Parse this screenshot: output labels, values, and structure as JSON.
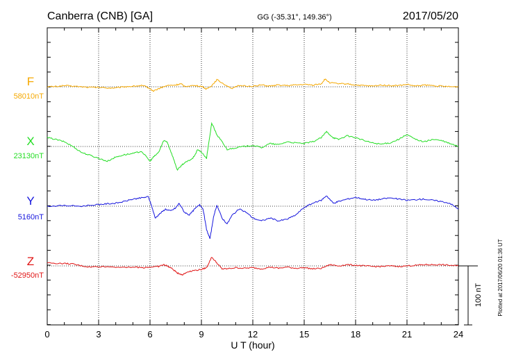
{
  "header": {
    "station": "Canberra (CNB)  [GA]",
    "coords": "GG (-35.31°, 149.36°)",
    "date": "2017/05/20"
  },
  "footer": {
    "plotted": "Plotted at 2017/06/20 01:36 UT",
    "scale_label": "100 nT"
  },
  "chart_data": {
    "type": "line",
    "xlabel": "U T (hour)",
    "xlim": [
      0,
      24
    ],
    "xticks": [
      "0",
      "3",
      "6",
      "9",
      "12",
      "15",
      "18",
      "21",
      "24"
    ],
    "scale_nT": 100,
    "series": [
      {
        "name": "F",
        "baseline_label": "58010nT",
        "color": "#f5a800",
        "points": [
          [
            0,
            0
          ],
          [
            0.5,
            0.5
          ],
          [
            1,
            2
          ],
          [
            1.5,
            1
          ],
          [
            2,
            0
          ],
          [
            2.5,
            -1
          ],
          [
            3,
            -1
          ],
          [
            3.5,
            -2
          ],
          [
            4,
            -2
          ],
          [
            4.5,
            0
          ],
          [
            5,
            1
          ],
          [
            5.5,
            2
          ],
          [
            5.8,
            0
          ],
          [
            6.2,
            -7
          ],
          [
            6.6,
            -2
          ],
          [
            7,
            2
          ],
          [
            7.5,
            3
          ],
          [
            7.8,
            5
          ],
          [
            8,
            1
          ],
          [
            8.5,
            2
          ],
          [
            9,
            1
          ],
          [
            9.3,
            -4
          ],
          [
            9.6,
            2
          ],
          [
            9.9,
            12
          ],
          [
            10.3,
            5
          ],
          [
            10.8,
            -3
          ],
          [
            11.2,
            2
          ],
          [
            12,
            1
          ],
          [
            12.5,
            3
          ],
          [
            13,
            1
          ],
          [
            13.5,
            3
          ],
          [
            14,
            2
          ],
          [
            14.5,
            3
          ],
          [
            15,
            4
          ],
          [
            15.5,
            3
          ],
          [
            16,
            5
          ],
          [
            16.2,
            13
          ],
          [
            16.5,
            7
          ],
          [
            17,
            5
          ],
          [
            17.5,
            5
          ],
          [
            18,
            3
          ],
          [
            18.5,
            2
          ],
          [
            19,
            1
          ],
          [
            19.5,
            3
          ],
          [
            20,
            2
          ],
          [
            20.5,
            2
          ],
          [
            21,
            4
          ],
          [
            21.5,
            1
          ],
          [
            22,
            3
          ],
          [
            22.5,
            2
          ],
          [
            23,
            1
          ],
          [
            23.5,
            0
          ],
          [
            24,
            0
          ]
        ]
      },
      {
        "name": "X",
        "baseline_label": "23130nT",
        "color": "#22dd22",
        "points": [
          [
            0,
            15
          ],
          [
            0.5,
            12
          ],
          [
            1,
            8
          ],
          [
            1.5,
            0
          ],
          [
            2,
            -10
          ],
          [
            2.5,
            -15
          ],
          [
            3,
            -20
          ],
          [
            3.5,
            -25
          ],
          [
            4,
            -18
          ],
          [
            4.5,
            -14
          ],
          [
            5,
            -12
          ],
          [
            5.5,
            -8
          ],
          [
            6,
            -25
          ],
          [
            6.2,
            -18
          ],
          [
            6.5,
            -10
          ],
          [
            6.8,
            10
          ],
          [
            7,
            8
          ],
          [
            7.3,
            -15
          ],
          [
            7.6,
            -40
          ],
          [
            7.9,
            -30
          ],
          [
            8.2,
            -25
          ],
          [
            8.5,
            -20
          ],
          [
            8.8,
            -5
          ],
          [
            9,
            -10
          ],
          [
            9.3,
            -20
          ],
          [
            9.6,
            40
          ],
          [
            9.9,
            20
          ],
          [
            10.2,
            8
          ],
          [
            10.5,
            -5
          ],
          [
            11,
            -2
          ],
          [
            11.5,
            0
          ],
          [
            12,
            2
          ],
          [
            12.5,
            -2
          ],
          [
            13,
            5
          ],
          [
            13.5,
            3
          ],
          [
            14,
            8
          ],
          [
            14.5,
            6
          ],
          [
            15,
            5
          ],
          [
            15.5,
            8
          ],
          [
            16,
            15
          ],
          [
            16.3,
            25
          ],
          [
            16.7,
            15
          ],
          [
            17,
            12
          ],
          [
            17.5,
            18
          ],
          [
            18,
            15
          ],
          [
            18.5,
            10
          ],
          [
            19,
            6
          ],
          [
            19.5,
            4
          ],
          [
            20,
            6
          ],
          [
            20.5,
            12
          ],
          [
            21,
            20
          ],
          [
            21.5,
            12
          ],
          [
            22,
            8
          ],
          [
            22.5,
            12
          ],
          [
            23,
            10
          ],
          [
            23.5,
            5
          ],
          [
            24,
            0
          ]
        ]
      },
      {
        "name": "Y",
        "baseline_label": "5160nT",
        "color": "#1414dd",
        "points": [
          [
            0,
            0
          ],
          [
            1,
            1
          ],
          [
            2,
            0
          ],
          [
            3,
            3
          ],
          [
            3.5,
            4
          ],
          [
            4,
            5
          ],
          [
            4.5,
            8
          ],
          [
            5,
            12
          ],
          [
            5.5,
            14
          ],
          [
            5.9,
            16
          ],
          [
            6.1,
            0
          ],
          [
            6.3,
            -20
          ],
          [
            6.6,
            -12
          ],
          [
            6.9,
            -5
          ],
          [
            7.2,
            -8
          ],
          [
            7.5,
            -3
          ],
          [
            7.7,
            5
          ],
          [
            8,
            -10
          ],
          [
            8.3,
            -15
          ],
          [
            8.6,
            -5
          ],
          [
            8.9,
            3
          ],
          [
            9.1,
            -5
          ],
          [
            9.3,
            -40
          ],
          [
            9.5,
            -55
          ],
          [
            9.7,
            -20
          ],
          [
            9.9,
            2
          ],
          [
            10.2,
            -20
          ],
          [
            10.5,
            -30
          ],
          [
            10.8,
            -15
          ],
          [
            11.2,
            -5
          ],
          [
            11.6,
            -10
          ],
          [
            12,
            -20
          ],
          [
            12.5,
            -25
          ],
          [
            13,
            -20
          ],
          [
            13.5,
            -25
          ],
          [
            14,
            -22
          ],
          [
            14.5,
            -15
          ],
          [
            15,
            -2
          ],
          [
            15.5,
            5
          ],
          [
            16,
            10
          ],
          [
            16.3,
            18
          ],
          [
            16.7,
            5
          ],
          [
            17,
            8
          ],
          [
            17.5,
            12
          ],
          [
            18,
            15
          ],
          [
            18.5,
            12
          ],
          [
            19,
            10
          ],
          [
            19.5,
            12
          ],
          [
            20,
            14
          ],
          [
            20.5,
            12
          ],
          [
            21,
            10
          ],
          [
            21.5,
            11
          ],
          [
            22,
            12
          ],
          [
            22.5,
            10
          ],
          [
            23,
            8
          ],
          [
            23.5,
            5
          ],
          [
            24,
            -5
          ]
        ]
      },
      {
        "name": "Z",
        "baseline_label": "-52950nT",
        "color": "#e01414",
        "points": [
          [
            0,
            5
          ],
          [
            1,
            4
          ],
          [
            1.5,
            3
          ],
          [
            2,
            0
          ],
          [
            2.5,
            -2
          ],
          [
            3,
            -1
          ],
          [
            4,
            -2
          ],
          [
            5,
            -2
          ],
          [
            5.5,
            -3
          ],
          [
            6,
            -2
          ],
          [
            6.5,
            -1
          ],
          [
            6.8,
            2
          ],
          [
            7,
            0
          ],
          [
            7.3,
            -5
          ],
          [
            7.6,
            -12
          ],
          [
            7.9,
            -15
          ],
          [
            8.2,
            -10
          ],
          [
            8.5,
            -8
          ],
          [
            9,
            -6
          ],
          [
            9.3,
            -3
          ],
          [
            9.6,
            15
          ],
          [
            9.9,
            5
          ],
          [
            10.2,
            -5
          ],
          [
            10.5,
            -5
          ],
          [
            11,
            -3
          ],
          [
            11.5,
            -4
          ],
          [
            12,
            -3
          ],
          [
            12.5,
            -5
          ],
          [
            13,
            -2
          ],
          [
            13.5,
            -4
          ],
          [
            14,
            -2
          ],
          [
            14.5,
            -4
          ],
          [
            15,
            -3
          ],
          [
            15.5,
            -5
          ],
          [
            16,
            -4
          ],
          [
            16.5,
            2
          ],
          [
            17,
            0
          ],
          [
            17.5,
            2
          ],
          [
            18,
            1
          ],
          [
            18.5,
            0
          ],
          [
            19,
            -1
          ],
          [
            19.5,
            -1
          ],
          [
            20,
            0
          ],
          [
            20.5,
            -1
          ],
          [
            21,
            0
          ],
          [
            21.5,
            1
          ],
          [
            22,
            2
          ],
          [
            22.5,
            2
          ],
          [
            23,
            2
          ],
          [
            23.5,
            1
          ],
          [
            24,
            0
          ]
        ]
      }
    ]
  }
}
